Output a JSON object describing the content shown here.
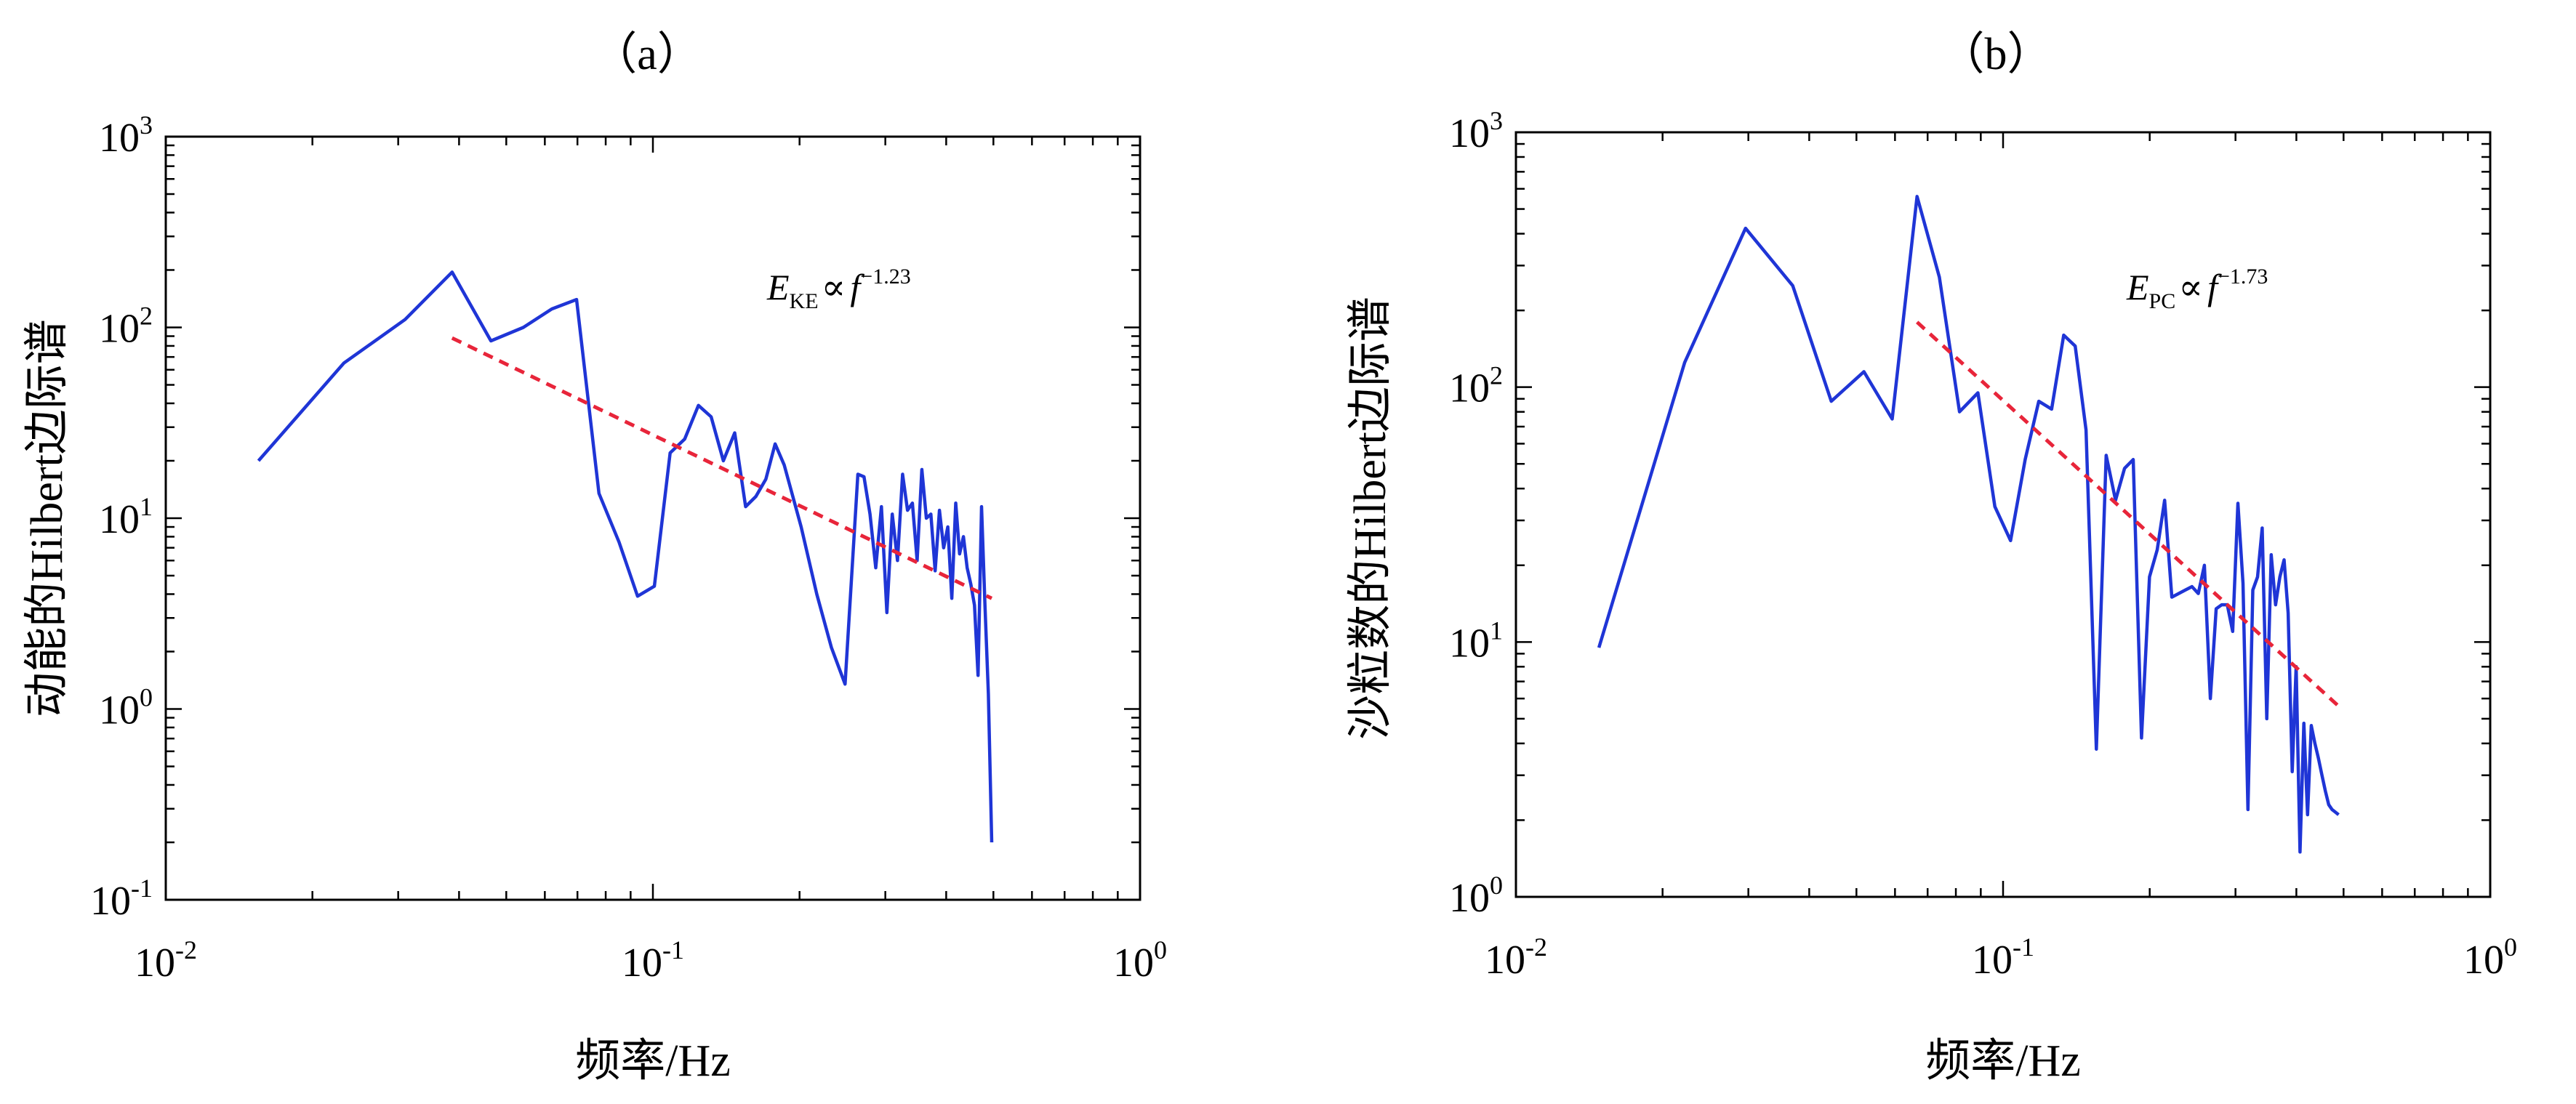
{
  "chart_data": [
    {
      "type": "line",
      "panel_label": "（a）",
      "xlabel": "频率/Hz",
      "ylabel": "动能的Hilbert边际谱",
      "xscale": "log",
      "yscale": "log",
      "xlim": [
        0.01,
        1
      ],
      "ylim": [
        0.1,
        1000
      ],
      "x_ticks": [
        {
          "base": "10",
          "exp": "-2"
        },
        {
          "base": "10",
          "exp": "-1"
        },
        {
          "base": "10",
          "exp": "0"
        }
      ],
      "y_ticks": [
        {
          "base": "10",
          "exp": "-1"
        },
        {
          "base": "10",
          "exp": "0"
        },
        {
          "base": "10",
          "exp": "1"
        },
        {
          "base": "10",
          "exp": "2"
        },
        {
          "base": "10",
          "exp": "3"
        }
      ],
      "annotation": {
        "E": "E",
        "sub": "KE",
        "prop": "∝",
        "f": "f",
        "exp": "−1.23"
      },
      "series": [
        {
          "color": "#1f35d6",
          "x": [
            0.0155,
            0.0232,
            0.031,
            0.0387,
            0.0465,
            0.0542,
            0.062,
            0.0697,
            0.0775,
            0.0852,
            0.093,
            0.1007,
            0.1085,
            0.1162,
            0.124,
            0.1317,
            0.1395,
            0.1472,
            0.155,
            0.1627,
            0.1705,
            0.1782,
            0.186,
            0.2015,
            0.217,
            0.2325,
            0.248,
            0.2635,
            0.2712,
            0.279,
            0.2867,
            0.2945,
            0.3022,
            0.31,
            0.3177,
            0.3255,
            0.3332,
            0.341,
            0.3487,
            0.3565,
            0.3642,
            0.372,
            0.3797,
            0.3875,
            0.3952,
            0.403,
            0.4107,
            0.4185,
            0.4262,
            0.434,
            0.4417,
            0.4495,
            0.4572,
            0.465,
            0.4727,
            0.4805,
            0.4882,
            0.496
          ],
          "y": [
            20,
            65,
            110,
            195,
            85,
            100,
            125,
            140,
            13.5,
            7.5,
            3.9,
            4.4,
            22,
            26,
            39,
            34,
            20,
            28,
            11.5,
            13,
            16,
            24.5,
            19,
            9,
            4,
            2.1,
            1.35,
            17,
            16.5,
            10.5,
            5.5,
            11.5,
            3.2,
            10.5,
            6,
            17,
            11,
            12,
            6,
            18,
            10,
            10.5,
            5.3,
            11,
            7,
            9,
            3.8,
            12,
            6.5,
            8,
            5.5,
            4.5,
            3.5,
            1.5,
            11.5,
            3.5,
            1.2,
            0.2
          ]
        },
        {
          "color": "#e8253a",
          "dashed": true,
          "x": [
            0.0387,
            0.496
          ],
          "y": [
            88,
            3.8
          ]
        }
      ]
    },
    {
      "type": "line",
      "panel_label": "（b）",
      "xlabel": "频率/Hz",
      "ylabel": "沙粒数的Hilbert边际谱",
      "xscale": "log",
      "yscale": "log",
      "xlim": [
        0.01,
        1
      ],
      "ylim": [
        1,
        1000
      ],
      "x_ticks": [
        {
          "base": "10",
          "exp": "-2"
        },
        {
          "base": "10",
          "exp": "-1"
        },
        {
          "base": "10",
          "exp": "0"
        }
      ],
      "y_ticks": [
        {
          "base": "10",
          "exp": "0"
        },
        {
          "base": "10",
          "exp": "1"
        },
        {
          "base": "10",
          "exp": "2"
        },
        {
          "base": "10",
          "exp": "3"
        }
      ],
      "annotation": {
        "E": "E",
        "sub": "PC",
        "prop": "∝",
        "f": "f",
        "exp": "−1.73"
      },
      "series": [
        {
          "color": "#1f35d6",
          "x": [
            0.0148,
            0.0222,
            0.0296,
            0.037,
            0.0444,
            0.0518,
            0.0592,
            0.0666,
            0.074,
            0.0814,
            0.0888,
            0.0962,
            0.1036,
            0.111,
            0.1184,
            0.1258,
            0.1332,
            0.1406,
            0.148,
            0.1554,
            0.1628,
            0.1702,
            0.1776,
            0.185,
            0.1924,
            0.1998,
            0.2072,
            0.2146,
            0.222,
            0.2294,
            0.2368,
            0.2442,
            0.2516,
            0.259,
            0.2664,
            0.2738,
            0.2812,
            0.2886,
            0.296,
            0.3034,
            0.3108,
            0.3182,
            0.3256,
            0.333,
            0.3404,
            0.3478,
            0.3552,
            0.3626,
            0.37,
            0.3774,
            0.3848,
            0.3922,
            0.3996,
            0.407,
            0.4144,
            0.4218,
            0.4292,
            0.4366,
            0.444,
            0.4514,
            0.4588,
            0.4662,
            0.4736,
            0.481,
            0.4884
          ],
          "y": [
            9.5,
            125,
            420,
            250,
            88,
            115,
            75,
            560,
            270,
            80,
            95,
            34,
            25,
            52,
            88,
            82,
            160,
            145,
            68,
            3.8,
            54,
            36,
            48,
            52,
            4.2,
            18,
            23,
            36,
            15,
            15.5,
            16,
            16.5,
            15.5,
            20,
            6,
            13.5,
            14,
            14,
            11,
            35,
            17,
            2.2,
            16,
            18,
            28,
            5,
            22,
            14,
            18,
            21,
            13,
            3.1,
            8,
            1.5,
            4.8,
            2.1,
            4.7,
            4,
            3.5,
            3,
            2.6,
            2.3,
            2.2,
            2.15,
            2.1
          ]
        },
        {
          "color": "#e8253a",
          "dashed": true,
          "x": [
            0.0666,
            0.4884
          ],
          "y": [
            180,
            5.6
          ]
        }
      ]
    }
  ]
}
